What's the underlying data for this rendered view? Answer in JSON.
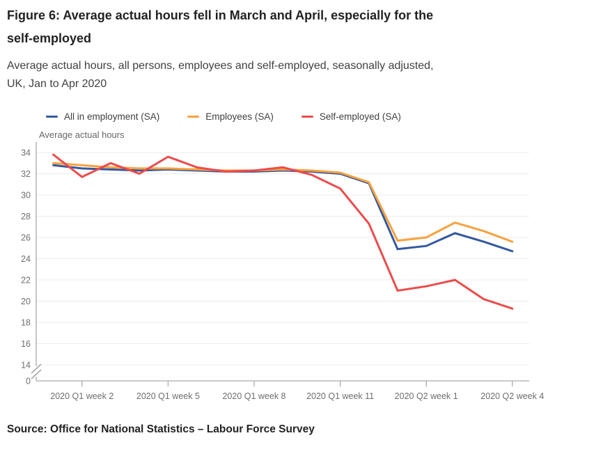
{
  "title": "Figure 6: Average actual hours fell in March and April, especially for the self-employed",
  "subtitle": "Average actual hours, all persons, employees and self-employed, seasonally adjusted, UK, Jan to Apr 2020",
  "source": "Source: Office for National Statistics – Labour Force Survey",
  "colors": {
    "all_in_employment": "#33589f",
    "employees": "#f9a13d",
    "self_employed": "#ec4b4b",
    "gridline": "#ececec",
    "axis": "#aaaaaa",
    "tick_text": "#6e6e6e"
  },
  "chart_data": {
    "type": "line",
    "y_axis_title": "Average actual hours",
    "ylim": [
      14,
      34
    ],
    "y_axis_break": true,
    "grid": "horizontal",
    "legend_position": "top",
    "y_ticks": [
      34,
      32,
      30,
      28,
      26,
      24,
      22,
      20,
      18,
      16,
      14,
      0
    ],
    "x_tick_labels": [
      "2020 Q1 week 2",
      "2020 Q1 week 5",
      "2020 Q1 week 8",
      "2020 Q1 week 11",
      "2020 Q2 week 1",
      "2020 Q2 week 4"
    ],
    "x_tick_indices": [
      1,
      4,
      7,
      10,
      13,
      16
    ],
    "categories": [
      "2020 Q1 week 1",
      "2020 Q1 week 2",
      "2020 Q1 week 3",
      "2020 Q1 week 4",
      "2020 Q1 week 5",
      "2020 Q1 week 6",
      "2020 Q1 week 7",
      "2020 Q1 week 8",
      "2020 Q1 week 9",
      "2020 Q1 week 10",
      "2020 Q1 week 11",
      "2020 Q1 week 12",
      "2020 Q1 week 13",
      "2020 Q2 week 1",
      "2020 Q2 week 2",
      "2020 Q2 week 3",
      "2020 Q2 week 4"
    ],
    "series": [
      {
        "name": "All in employment (SA)",
        "color": "#33589f",
        "values": [
          32.8,
          32.5,
          32.4,
          32.3,
          32.4,
          32.3,
          32.2,
          32.2,
          32.3,
          32.2,
          32.0,
          31.1,
          24.9,
          25.2,
          26.4,
          25.6,
          24.7
        ]
      },
      {
        "name": "Employees (SA)",
        "color": "#f9a13d",
        "values": [
          33.0,
          32.8,
          32.6,
          32.5,
          32.5,
          32.4,
          32.3,
          32.3,
          32.4,
          32.3,
          32.1,
          31.2,
          25.7,
          26.0,
          27.4,
          26.6,
          25.6
        ]
      },
      {
        "name": "Self-employed (SA)",
        "color": "#ec4b4b",
        "values": [
          33.8,
          31.7,
          33.0,
          32.0,
          33.6,
          32.6,
          32.2,
          32.3,
          32.6,
          31.9,
          30.6,
          27.3,
          21.0,
          21.4,
          22.0,
          20.2,
          19.3
        ]
      }
    ]
  }
}
